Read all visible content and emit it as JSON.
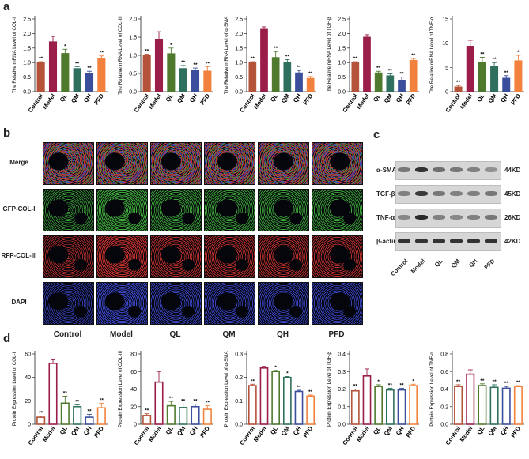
{
  "panel_labels": {
    "a": "a",
    "b": "b",
    "c": "c",
    "d": "d"
  },
  "group_colors": [
    "#b5533a",
    "#9b1d4a",
    "#4f7a2e",
    "#2f6f5d",
    "#3a4e9b",
    "#f1813c"
  ],
  "chart_data": [
    {
      "id": "a1",
      "type": "bar",
      "categories": [
        "Control",
        "Model",
        "QL",
        "QM",
        "QH",
        "PFD"
      ],
      "values": [
        1.0,
        1.72,
        1.32,
        0.8,
        0.62,
        1.15
      ],
      "errors": [
        0.03,
        0.18,
        0.14,
        0.06,
        0.08,
        0.08
      ],
      "sig": [
        "**",
        "",
        "*",
        "**",
        "**",
        "**"
      ],
      "ylabel": "The Relative mRNA Level of COL-I",
      "ylim": [
        0,
        2.5
      ],
      "ticks": [
        0.0,
        0.5,
        1.0,
        1.5,
        2.0,
        2.5
      ]
    },
    {
      "id": "a2",
      "type": "bar",
      "categories": [
        "Control",
        "Model",
        "QL",
        "QM",
        "QH",
        "PFD"
      ],
      "values": [
        1.0,
        1.45,
        1.05,
        0.64,
        0.6,
        0.57
      ],
      "errors": [
        0.03,
        0.2,
        0.15,
        0.08,
        0.05,
        0.12
      ],
      "sig": [
        "**",
        "",
        "*",
        "**",
        "**",
        "**"
      ],
      "ylabel": "The Relative mRNA Level of COL-III",
      "ylim": [
        0,
        2.0
      ],
      "ticks": [
        0.0,
        0.5,
        1.0,
        1.5,
        2.0
      ]
    },
    {
      "id": "a3",
      "type": "bar",
      "categories": [
        "Control",
        "Model",
        "QL",
        "QM",
        "QH",
        "PFD"
      ],
      "values": [
        1.0,
        2.15,
        1.18,
        1.0,
        0.65,
        0.46
      ],
      "errors": [
        0.03,
        0.08,
        0.2,
        0.1,
        0.08,
        0.06
      ],
      "sig": [
        "**",
        "",
        "**",
        "**",
        "**",
        "**"
      ],
      "ylabel": "The Relative mRNA Level of α-SMA",
      "ylim": [
        0,
        2.5
      ],
      "ticks": [
        0.0,
        0.5,
        1.0,
        1.5,
        2.0,
        2.5
      ]
    },
    {
      "id": "a4",
      "type": "bar",
      "categories": [
        "Control",
        "Model",
        "QL",
        "QM",
        "QH",
        "PFD"
      ],
      "values": [
        1.0,
        1.88,
        0.65,
        0.55,
        0.4,
        1.08
      ],
      "errors": [
        0.03,
        0.08,
        0.05,
        0.06,
        0.1,
        0.06
      ],
      "sig": [
        "**",
        "",
        "**",
        "**",
        "**",
        "**"
      ],
      "ylabel": "The Relative mRNA Level of TGF-β",
      "ylim": [
        0,
        2.5
      ],
      "ticks": [
        0.0,
        0.5,
        1.0,
        1.5,
        2.0,
        2.5
      ]
    },
    {
      "id": "a5",
      "type": "bar",
      "categories": [
        "Control",
        "Model",
        "QL",
        "QM",
        "QH",
        "PFD"
      ],
      "values": [
        1.0,
        9.4,
        6.0,
        5.2,
        2.8,
        6.4
      ],
      "errors": [
        0.3,
        1.2,
        1.1,
        0.8,
        0.5,
        1.1
      ],
      "sig": [
        "**",
        "",
        "**",
        "**",
        "**",
        "*"
      ],
      "ylabel": "The Relative mRNA Level of TNF-α",
      "ylim": [
        0,
        15
      ],
      "ticks": [
        0,
        5,
        10,
        15
      ]
    },
    {
      "id": "d1",
      "type": "bar",
      "categories": [
        "Control",
        "Model",
        "QL",
        "QM",
        "QH",
        "PFD"
      ],
      "values": [
        6,
        52,
        18,
        15,
        6,
        14
      ],
      "errors": [
        1,
        3,
        6,
        1.5,
        2.5,
        4
      ],
      "sig": [
        "**",
        "",
        "**",
        "**",
        "**",
        "**"
      ],
      "ylabel": "Protein Expression Level of COL-I",
      "ylim": [
        0,
        60
      ],
      "ticks": [
        0,
        20,
        40,
        60
      ]
    },
    {
      "id": "d2",
      "type": "bar",
      "categories": [
        "Control",
        "Model",
        "QL",
        "QM",
        "QH",
        "PFD"
      ],
      "values": [
        10,
        48,
        21,
        19,
        20,
        17
      ],
      "errors": [
        2,
        12,
        5,
        4,
        3,
        4
      ],
      "sig": [
        "**",
        "",
        "**",
        "**",
        "**",
        "**"
      ],
      "ylabel": "Protein Expression Level of COL-III",
      "ylim": [
        0,
        80
      ],
      "ticks": [
        0,
        20,
        40,
        60,
        80
      ]
    },
    {
      "id": "d3",
      "type": "bar",
      "categories": [
        "Control",
        "Model",
        "QL",
        "QM",
        "QH",
        "PFD"
      ],
      "values": [
        0.165,
        0.24,
        0.225,
        0.2,
        0.14,
        0.12
      ],
      "errors": [
        0.006,
        0.007,
        0.005,
        0.004,
        0.005,
        0.005
      ],
      "sig": [
        "**",
        "",
        "*",
        "*",
        "**",
        "**"
      ],
      "ylabel": "Protein Expression Level of α-SMA",
      "ylim": [
        0,
        0.3
      ],
      "ticks": [
        0.0,
        0.1,
        0.2,
        0.3
      ]
    },
    {
      "id": "d4",
      "type": "bar",
      "categories": [
        "Control",
        "Model",
        "QL",
        "QM",
        "QH",
        "PFD"
      ],
      "values": [
        0.19,
        0.275,
        0.215,
        0.195,
        0.195,
        0.22
      ],
      "errors": [
        0.01,
        0.04,
        0.01,
        0.01,
        0.01,
        0.008
      ],
      "sig": [
        "**",
        "",
        "*",
        "**",
        "**",
        "*"
      ],
      "ylabel": "Protein Expression Level of TGF-β",
      "ylim": [
        0,
        0.4
      ],
      "ticks": [
        0.0,
        0.1,
        0.2,
        0.3,
        0.4
      ]
    },
    {
      "id": "d5",
      "type": "bar",
      "categories": [
        "Control",
        "Model",
        "QL",
        "QM",
        "QH",
        "PFD"
      ],
      "values": [
        0.43,
        0.57,
        0.44,
        0.42,
        0.41,
        0.43
      ],
      "errors": [
        0.02,
        0.05,
        0.02,
        0.03,
        0.02,
        0.01
      ],
      "sig": [
        "**",
        "",
        "**",
        "**",
        "**",
        "**"
      ],
      "ylabel": "Protein Expression Level of TNF-α",
      "ylim": [
        0,
        0.8
      ],
      "ticks": [
        0.0,
        0.2,
        0.4,
        0.6,
        0.8
      ]
    }
  ],
  "microscopy": {
    "row_labels": [
      "Merge",
      "GFP-COL-I",
      "RFP-COL-III",
      "DAPI"
    ],
    "col_labels": [
      "Control",
      "Model",
      "QL",
      "QM",
      "QH",
      "PFD"
    ],
    "row_colors": [
      "#c06a8a",
      "#3fae3a",
      "#c8322c",
      "#3b46c8"
    ]
  },
  "western_blot": {
    "proteins": [
      "α-SMA",
      "TGF-β",
      "TNF-α",
      "β-actin"
    ],
    "sizes": [
      "44KD",
      "45KD",
      "26KD",
      "42KD"
    ],
    "lanes": [
      "Control",
      "Model",
      "QL",
      "QM",
      "QH",
      "PFD"
    ],
    "band_intensity": [
      [
        0.55,
        0.95,
        0.6,
        0.55,
        0.5,
        0.4
      ],
      [
        0.5,
        0.9,
        0.55,
        0.5,
        0.5,
        0.55
      ],
      [
        0.45,
        1.0,
        0.5,
        0.45,
        0.5,
        0.55
      ],
      [
        0.95,
        0.95,
        0.95,
        0.95,
        0.95,
        0.95
      ]
    ]
  }
}
